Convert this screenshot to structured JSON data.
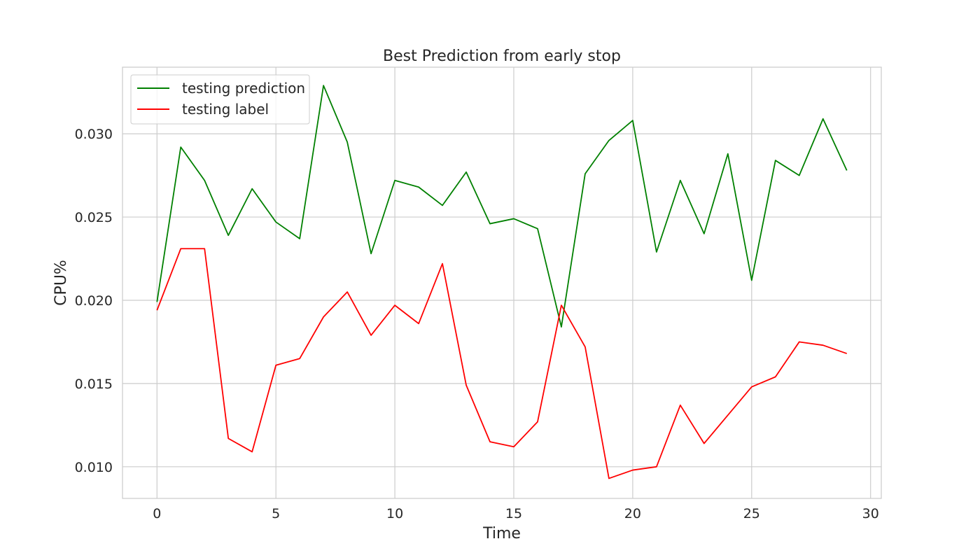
{
  "chart_data": {
    "type": "line",
    "title": "Best Prediction from early stop",
    "xlabel": "Time",
    "ylabel": "CPU%",
    "xlim": [
      -1.45,
      30.45
    ],
    "ylim": [
      0.0081,
      0.034
    ],
    "xticks": [
      0,
      5,
      10,
      15,
      20,
      25,
      30
    ],
    "xtick_labels": [
      "0",
      "5",
      "10",
      "15",
      "20",
      "25",
      "30"
    ],
    "yticks": [
      0.01,
      0.015,
      0.02,
      0.025,
      0.03
    ],
    "ytick_labels": [
      "0.010",
      "0.015",
      "0.020",
      "0.025",
      "0.030"
    ],
    "grid": true,
    "legend_position": "top-left",
    "x": [
      0,
      1,
      2,
      3,
      4,
      5,
      6,
      7,
      8,
      9,
      10,
      11,
      12,
      13,
      14,
      15,
      16,
      17,
      18,
      19,
      20,
      21,
      22,
      23,
      24,
      25,
      26,
      27,
      28,
      29
    ],
    "series": [
      {
        "name": "testing prediction",
        "color": "#008000",
        "values": [
          0.0199,
          0.0292,
          0.0272,
          0.0239,
          0.0267,
          0.0247,
          0.0237,
          0.0329,
          0.0295,
          0.0228,
          0.0272,
          0.0268,
          0.0257,
          0.0277,
          0.0246,
          0.0249,
          0.0243,
          0.0184,
          0.0276,
          0.0296,
          0.0308,
          0.0229,
          0.0272,
          0.024,
          0.0288,
          0.0212,
          0.0284,
          0.0275,
          0.0309,
          0.0278
        ]
      },
      {
        "name": "testing label",
        "color": "#ff0000",
        "values": [
          0.0194,
          0.0231,
          0.0231,
          0.0117,
          0.0109,
          0.0161,
          0.0165,
          0.019,
          0.0205,
          0.0179,
          0.0197,
          0.0186,
          0.0222,
          0.0149,
          0.0115,
          0.0112,
          0.0127,
          0.0197,
          0.0172,
          0.0093,
          0.0098,
          0.01,
          0.0137,
          0.0114,
          0.0131,
          0.0148,
          0.0154,
          0.0175,
          0.0173,
          0.0168
        ]
      }
    ]
  }
}
